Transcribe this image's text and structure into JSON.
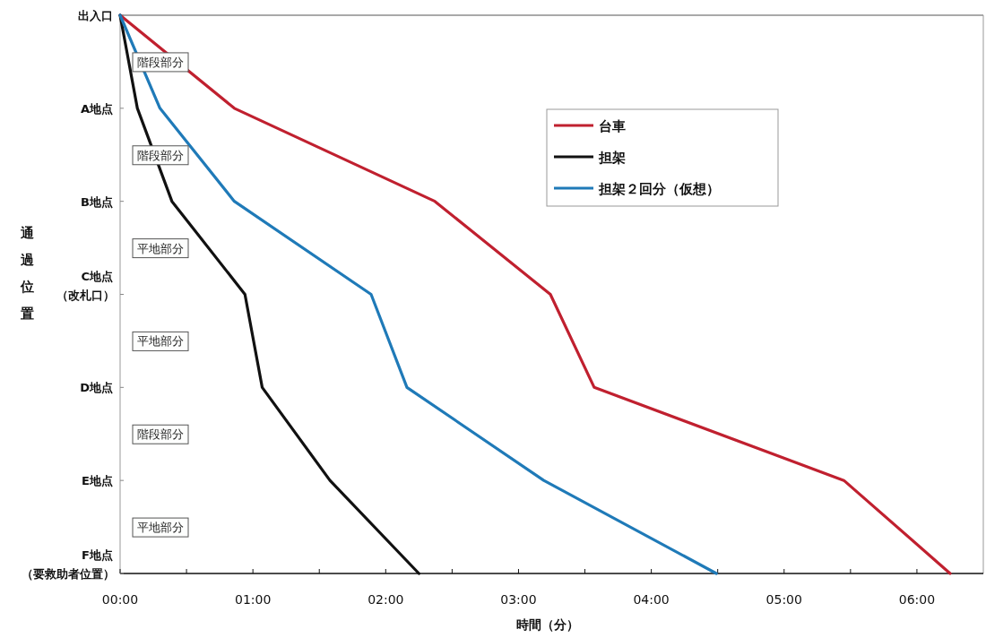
{
  "chart_data": {
    "type": "line",
    "orientation": "horizontal",
    "xlabel": "時間（分）",
    "ylabel": "通過位置",
    "categories": [
      "出入口",
      "A地点",
      "B地点",
      "C地点（改札口）",
      "D地点",
      "E地点",
      "F地点（要救助者位置）"
    ],
    "series": [
      {
        "name": "台車",
        "color": "#c0202f",
        "values": [
          0,
          0.86,
          2.37,
          3.24,
          3.57,
          5.45,
          6.25
        ]
      },
      {
        "name": "担架",
        "color": "#111111",
        "values": [
          0,
          0.13,
          0.39,
          0.94,
          1.07,
          1.58,
          2.25
        ]
      },
      {
        "name": "担架２回分（仮想）",
        "color": "#1f7ab8",
        "values": [
          0,
          0.3,
          0.86,
          1.89,
          2.16,
          3.19,
          4.49
        ]
      }
    ],
    "xlim": [
      0,
      6.5
    ],
    "xticks": [
      {
        "value": 0,
        "label": "00:00"
      },
      {
        "value": 0.5,
        "label": null
      },
      {
        "value": 1,
        "label": "01:00"
      },
      {
        "value": 1.5,
        "label": null
      },
      {
        "value": 2,
        "label": "02:00"
      },
      {
        "value": 2.5,
        "label": null
      },
      {
        "value": 3,
        "label": "03:00"
      },
      {
        "value": 3.5,
        "label": null
      },
      {
        "value": 4,
        "label": "04:00"
      },
      {
        "value": 4.5,
        "label": null
      },
      {
        "value": 5,
        "label": "05:00"
      },
      {
        "value": 5.5,
        "label": null
      },
      {
        "value": 6,
        "label": "06:00"
      }
    ],
    "annotations": [
      "階段部分",
      "階段部分",
      "平地部分",
      "平地部分",
      "階段部分",
      "平地部分"
    ],
    "legend": "top right",
    "grid": false,
    "marker": "none",
    "line_style": "solid"
  }
}
